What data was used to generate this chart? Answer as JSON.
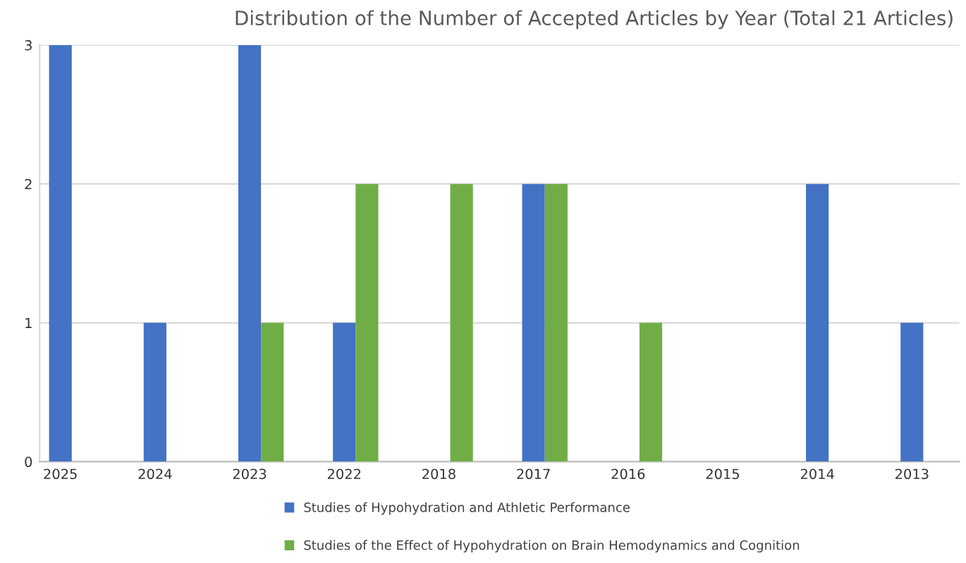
{
  "chart_data": {
    "type": "bar",
    "title": "Distribution of the Number of Accepted Articles by Year (Total 21 Articles)",
    "categories": [
      "2025",
      "2024",
      "2023",
      "2022",
      "2018",
      "2017",
      "2016",
      "2015",
      "2014",
      "2013"
    ],
    "series": [
      {
        "name": "Studies of Hypohydration and Athletic Performance",
        "color": "#4472c4",
        "values": [
          3,
          1,
          3,
          1,
          0,
          2,
          0,
          0,
          2,
          1
        ]
      },
      {
        "name": "Studies of the Effect of Hypohydration on Brain Hemodynamics and Cognition",
        "color": "#70ad47",
        "values": [
          0,
          0,
          1,
          2,
          2,
          2,
          1,
          0,
          0,
          0
        ]
      }
    ],
    "ylim": [
      0,
      3
    ],
    "yticks": [
      0,
      1,
      2,
      3
    ],
    "grid": "y",
    "legend": "bottom"
  }
}
